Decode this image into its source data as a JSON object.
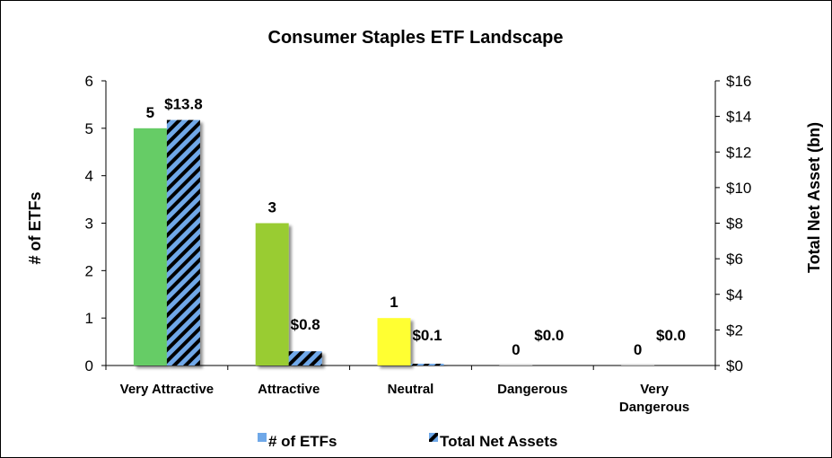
{
  "chart_data": {
    "type": "bar",
    "title": "Consumer Staples ETF Landscape",
    "ylabel": "# of ETFs",
    "y2label": "Total Net Asset (bn)",
    "ylim": [
      0,
      6
    ],
    "y2lim": [
      0,
      16
    ],
    "yticks": [
      "0",
      "1",
      "2",
      "3",
      "4",
      "5",
      "6"
    ],
    "y2ticks": [
      "$0",
      "$2",
      "$4",
      "$6",
      "$8",
      "$10",
      "$12",
      "$14",
      "$16"
    ],
    "categories": [
      [
        "Very Attractive"
      ],
      [
        "Attractive"
      ],
      [
        "Neutral"
      ],
      [
        "Dangerous"
      ],
      [
        "Very",
        "Dangerous"
      ]
    ],
    "series": [
      {
        "name": "# of ETFs",
        "axis": "left",
        "values": [
          5,
          3,
          1,
          0,
          0
        ],
        "labels": [
          "5",
          "3",
          "1",
          "0",
          "0"
        ],
        "colors": [
          "#66cc66",
          "#99cc33",
          "#ffff33",
          "#cccccc",
          "#cccccc"
        ],
        "legend_color": "#6fa8e8"
      },
      {
        "name": "Total Net Assets",
        "axis": "right",
        "values": [
          13.8,
          0.8,
          0.1,
          0.0,
          0.0
        ],
        "labels": [
          "$13.8",
          "$0.8",
          "$0.1",
          "$0.0",
          "$0.0"
        ],
        "pattern": "diagonal-stripes",
        "stripe_colors": [
          "#6fa8e8",
          "#000000"
        ]
      }
    ],
    "grid": false,
    "legend": "bottom"
  }
}
